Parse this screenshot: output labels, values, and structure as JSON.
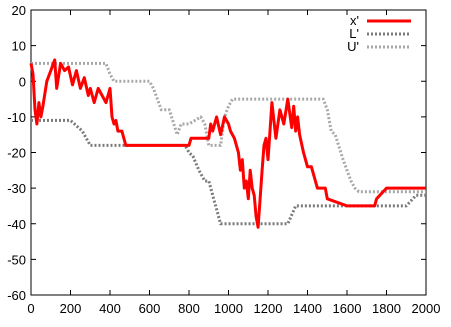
{
  "chart_data": {
    "type": "line",
    "title": "",
    "xlabel": "",
    "ylabel": "",
    "xlim": [
      0,
      2000
    ],
    "ylim": [
      -60,
      20
    ],
    "x_ticks": [
      0,
      200,
      400,
      600,
      800,
      1000,
      1200,
      1400,
      1600,
      1800,
      2000
    ],
    "y_ticks": [
      20,
      10,
      0,
      -10,
      -20,
      -30,
      -40,
      -50,
      -60
    ],
    "x_tick_labels": [
      "0",
      "200",
      "400",
      "600",
      "800",
      "1000",
      "1200",
      "1400",
      "1600",
      "1800",
      "2000"
    ],
    "y_tick_labels": [
      "20",
      "10",
      "0",
      "-10",
      "-20",
      "-30",
      "-40",
      "-50",
      "-60"
    ],
    "grid": false,
    "legend_position": "top-right",
    "series": [
      {
        "name": "x'",
        "color": "#ff0000",
        "style": "solid",
        "x": [
          0,
          10,
          20,
          30,
          40,
          50,
          60,
          80,
          100,
          120,
          130,
          150,
          170,
          190,
          210,
          230,
          250,
          270,
          290,
          300,
          320,
          340,
          360,
          380,
          400,
          410,
          420,
          430,
          440,
          450,
          460,
          480,
          500,
          600,
          700,
          800,
          810,
          850,
          900,
          910,
          920,
          940,
          960,
          980,
          1000,
          1010,
          1030,
          1050,
          1060,
          1070,
          1080,
          1090,
          1100,
          1110,
          1120,
          1130,
          1140,
          1150,
          1160,
          1170,
          1180,
          1190,
          1200,
          1210,
          1220,
          1240,
          1260,
          1280,
          1300,
          1320,
          1330,
          1340,
          1350,
          1360,
          1380,
          1400,
          1420,
          1440,
          1450,
          1470,
          1490,
          1500,
          1600,
          1700,
          1740,
          1750,
          1800,
          1900,
          2000
        ],
        "y": [
          5,
          2,
          -8,
          -12,
          -6,
          -10,
          -7,
          0,
          3,
          6,
          -2,
          5,
          3,
          4,
          -1,
          3,
          -2,
          1,
          -4,
          -2,
          -6,
          -2,
          -4,
          -6,
          -2,
          -10,
          -12,
          -11,
          -14,
          -14,
          -14,
          -18,
          -18,
          -18,
          -18,
          -18,
          -16,
          -16,
          -16,
          -12,
          -14,
          -10,
          -15,
          -10,
          -12,
          -14,
          -16,
          -20,
          -25,
          -22,
          -30,
          -28,
          -33,
          -25,
          -30,
          -32,
          -38,
          -41,
          -33,
          -25,
          -18,
          -16,
          -22,
          -14,
          -6,
          -16,
          -8,
          -12,
          -5,
          -13,
          -7,
          -14,
          -10,
          -15,
          -20,
          -24,
          -24,
          -28,
          -30,
          -30,
          -30,
          -33,
          -35,
          -35,
          -35,
          -33,
          -30,
          -30,
          -30
        ]
      },
      {
        "name": "L'",
        "color": "#7a7a7a",
        "style": "dotted",
        "x": [
          0,
          100,
          160,
          200,
          260,
          300,
          320,
          780,
          800,
          820,
          850,
          880,
          900,
          920,
          960,
          1300,
          1340,
          1400,
          1900,
          1950,
          2000
        ],
        "y": [
          -11,
          -11,
          -11,
          -11,
          -14,
          -18,
          -18,
          -18,
          -20,
          -21,
          -25,
          -28,
          -28,
          -32,
          -40,
          -40,
          -35,
          -35,
          -35,
          -32,
          -32
        ]
      },
      {
        "name": "U'",
        "color": "#a8a8a8",
        "style": "dotted",
        "x": [
          0,
          380,
          400,
          420,
          600,
          620,
          640,
          660,
          700,
          740,
          760,
          800,
          860,
          880,
          900,
          960,
          980,
          1000,
          1020,
          1480,
          1500,
          1520,
          1540,
          1580,
          1600,
          1620,
          1640,
          1660,
          2000
        ],
        "y": [
          5,
          5,
          2,
          0,
          0,
          -2,
          -5,
          -8,
          -8,
          -15,
          -12,
          -12,
          -10,
          -12,
          -18,
          -18,
          -10,
          -7,
          -5,
          -5,
          -8,
          -14,
          -15,
          -22,
          -25,
          -28,
          -30,
          -31,
          -31
        ]
      }
    ]
  }
}
